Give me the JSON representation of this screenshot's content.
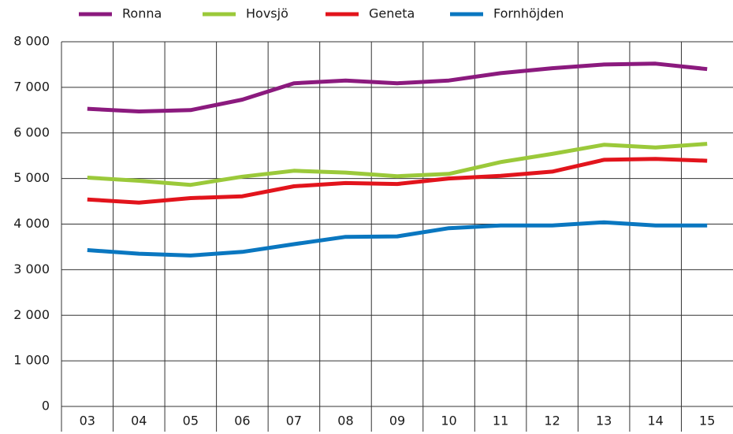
{
  "chart_data": {
    "type": "line",
    "categories": [
      "03",
      "04",
      "05",
      "06",
      "07",
      "08",
      "09",
      "10",
      "11",
      "12",
      "13",
      "14",
      "15"
    ],
    "series": [
      {
        "name": "Ronna",
        "color": "#8b1a7e",
        "values": [
          6530,
          6470,
          6500,
          6730,
          7090,
          7150,
          7090,
          7150,
          7310,
          7420,
          7500,
          7520,
          7400
        ]
      },
      {
        "name": "Hovsjö",
        "color": "#9bc93a",
        "values": [
          5020,
          4950,
          4860,
          5040,
          5170,
          5130,
          5050,
          5100,
          5360,
          5540,
          5740,
          5680,
          5760
        ]
      },
      {
        "name": "Geneta",
        "color": "#e2141c",
        "values": [
          4540,
          4470,
          4570,
          4610,
          4830,
          4900,
          4880,
          5000,
          5060,
          5150,
          5410,
          5430,
          5390
        ]
      },
      {
        "name": "Fornhöjden",
        "color": "#0a77c0",
        "values": [
          3430,
          3350,
          3310,
          3390,
          3560,
          3720,
          3730,
          3910,
          3970,
          3970,
          4040,
          3970,
          3970
        ]
      }
    ],
    "ylim": [
      0,
      8000
    ],
    "yticks": [
      0,
      {
        "value": 1000,
        "label": "1 000"
      },
      {
        "value": 2000,
        "label": "2 000"
      },
      {
        "value": 3000,
        "label": "3 000"
      },
      {
        "value": 4000,
        "label": "4 000"
      },
      {
        "value": 5000,
        "label": "5 000"
      },
      {
        "value": 6000,
        "label": "6 000"
      },
      {
        "value": 7000,
        "label": "7 000"
      },
      {
        "value": 8000,
        "label": "8 000"
      }
    ],
    "grid": true,
    "legend": "top"
  }
}
